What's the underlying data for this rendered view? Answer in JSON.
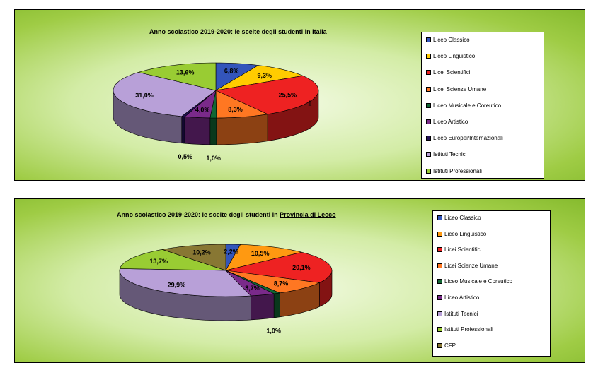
{
  "chart_data": [
    {
      "type": "pie",
      "title_prefix": "Anno scolastico 2019-2020: le scelte degli studenti in ",
      "title_place": "Italia",
      "categories": [
        "Liceo Classico",
        "Liceo Linguistico",
        "Licei Scientifici",
        "Licei Scienze Umane",
        "Liceo Musicale e Coreutico",
        "Liceo Artistico",
        "Liceo Europei/Internazionali",
        "Istituti Tecnici",
        "Istituti Professionali"
      ],
      "values": [
        6.8,
        9.3,
        25.5,
        8.3,
        1.0,
        4.0,
        0.5,
        31.0,
        13.6
      ],
      "labels": [
        "6,8%",
        "9,3%",
        "25,5%",
        "8,3%",
        "1,0%",
        "4,0%",
        "0,5%",
        "31,0%",
        "13,6%"
      ],
      "colors": [
        "#3355bb",
        "#ffcc00",
        "#ee2222",
        "#ff7722",
        "#116633",
        "#7a2a8a",
        "#221155",
        "#b8a0d8",
        "#99cc33"
      ],
      "annotation": "1",
      "legend_position": "right"
    },
    {
      "type": "pie",
      "title_prefix": "Anno scolastico 2019-2020: le scelte degli studenti in ",
      "title_place": "Provincia di Lecco",
      "categories": [
        "Liceo Classico",
        "Liceo Linguistico",
        "Licei Scientifici",
        "Licei Scienze Umane",
        "Liceo Musicale e Coreutico",
        "Liceo Artistico",
        "Istituti Tecnici",
        "Istituti Professionali",
        "CFP"
      ],
      "values": [
        2.2,
        10.5,
        20.1,
        8.7,
        1.0,
        3.7,
        29.9,
        13.7,
        10.2
      ],
      "labels": [
        "2,2%",
        "10,5%",
        "20,1%",
        "8,7%",
        "1,0%",
        "3,7%",
        "29,9%",
        "13,7%",
        "10,2%"
      ],
      "colors": [
        "#3355bb",
        "#ff9911",
        "#ee2222",
        "#ff7722",
        "#116633",
        "#7a2a8a",
        "#b8a0d8",
        "#99cc33",
        "#887733"
      ],
      "annotation": "",
      "legend_position": "right"
    }
  ]
}
